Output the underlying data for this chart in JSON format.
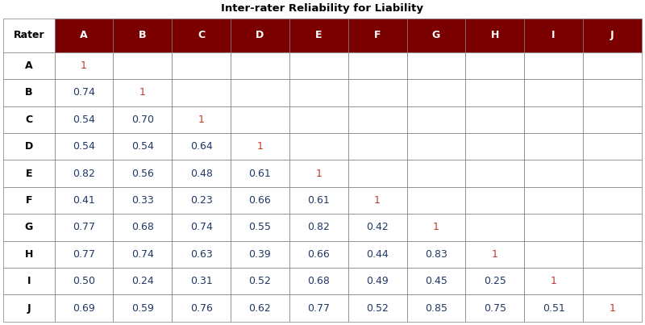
{
  "title": "Inter-rater Reliability for Liability",
  "title_fontsize": 9.5,
  "title_fontweight": "bold",
  "col_labels": [
    "A",
    "B",
    "C",
    "D",
    "E",
    "F",
    "G",
    "H",
    "I",
    "J"
  ],
  "row_labels": [
    "A",
    "B",
    "C",
    "D",
    "E",
    "F",
    "G",
    "H",
    "I",
    "J"
  ],
  "rater_label": "Rater",
  "header_bg_color": "#7B0000",
  "header_text_color": "#FFFFFF",
  "diag_color": "#C0392B",
  "offdiag_color": "#1F3864",
  "row_label_color": "#000000",
  "border_color": "#7B7B7B",
  "bg_color": "#FFFFFF",
  "table_data": [
    [
      "1",
      "",
      "",
      "",
      "",
      "",
      "",
      "",
      "",
      ""
    ],
    [
      "0.74",
      "1",
      "",
      "",
      "",
      "",
      "",
      "",
      "",
      ""
    ],
    [
      "0.54",
      "0.70",
      "1",
      "",
      "",
      "",
      "",
      "",
      "",
      ""
    ],
    [
      "0.54",
      "0.54",
      "0.64",
      "1",
      "",
      "",
      "",
      "",
      "",
      ""
    ],
    [
      "0.82",
      "0.56",
      "0.48",
      "0.61",
      "1",
      "",
      "",
      "",
      "",
      ""
    ],
    [
      "0.41",
      "0.33",
      "0.23",
      "0.66",
      "0.61",
      "1",
      "",
      "",
      "",
      ""
    ],
    [
      "0.77",
      "0.68",
      "0.74",
      "0.55",
      "0.82",
      "0.42",
      "1",
      "",
      "",
      ""
    ],
    [
      "0.77",
      "0.74",
      "0.63",
      "0.39",
      "0.66",
      "0.44",
      "0.83",
      "1",
      "",
      ""
    ],
    [
      "0.50",
      "0.24",
      "0.31",
      "0.52",
      "0.68",
      "0.49",
      "0.45",
      "0.25",
      "1",
      ""
    ],
    [
      "0.69",
      "0.59",
      "0.76",
      "0.62",
      "0.77",
      "0.52",
      "0.85",
      "0.75",
      "0.51",
      "1"
    ]
  ],
  "figsize": [
    8.0,
    4.03
  ],
  "dpi": 100
}
